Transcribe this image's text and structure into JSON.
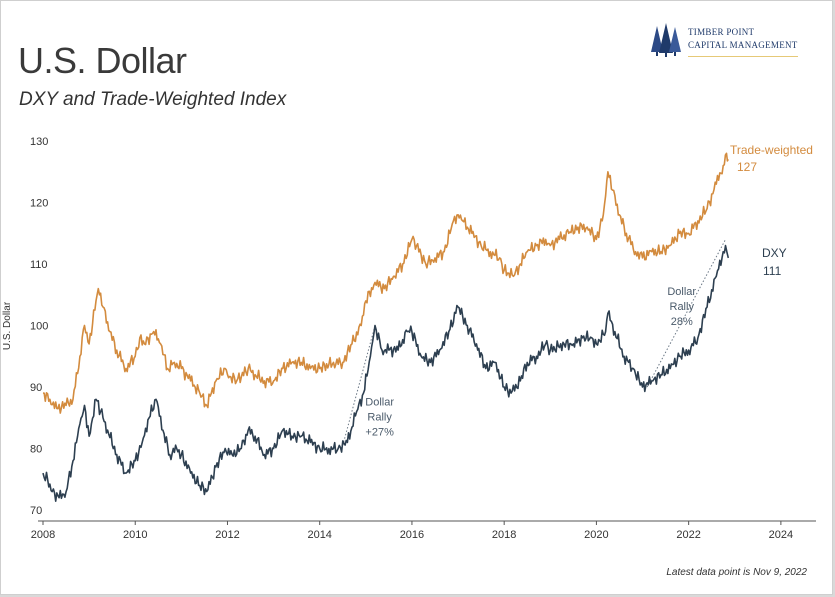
{
  "header": {
    "title": "U.S. Dollar",
    "subtitle": "DXY and Trade-Weighted Index"
  },
  "logo": {
    "line1": "Timber Point",
    "line2": "Capital Management",
    "icon": "pine-trees-icon"
  },
  "footnote": "Latest data point is Nov 9, 2022",
  "colors": {
    "trade_weighted": "#d38b3e",
    "dxy": "#2d3f50",
    "annotation": "#4a5a6a"
  },
  "chart_data": {
    "type": "line",
    "ylabel": "U.S. Dollar",
    "ylim": [
      70,
      130
    ],
    "yticks": [
      "70",
      "80",
      "90",
      "100",
      "110",
      "120",
      "130"
    ],
    "xlim": [
      2008,
      2025
    ],
    "xticks": [
      "2008",
      "2010",
      "2012",
      "2014",
      "2016",
      "2018",
      "2020",
      "2022",
      "2024"
    ],
    "grid": false,
    "series": [
      {
        "name": "Trade-weighted",
        "end_label": "127",
        "points": [
          [
            2008.0,
            89
          ],
          [
            2008.15,
            88
          ],
          [
            2008.3,
            86.5
          ],
          [
            2008.5,
            87
          ],
          [
            2008.65,
            88
          ],
          [
            2008.8,
            95
          ],
          [
            2008.9,
            100
          ],
          [
            2009.0,
            97
          ],
          [
            2009.15,
            104
          ],
          [
            2009.2,
            106
          ],
          [
            2009.3,
            103
          ],
          [
            2009.45,
            99
          ],
          [
            2009.6,
            96
          ],
          [
            2009.8,
            93
          ],
          [
            2010.0,
            95
          ],
          [
            2010.1,
            98
          ],
          [
            2010.2,
            97
          ],
          [
            2010.4,
            99
          ],
          [
            2010.55,
            97
          ],
          [
            2010.7,
            93
          ],
          [
            2010.85,
            94
          ],
          [
            2011.0,
            93
          ],
          [
            2011.2,
            91
          ],
          [
            2011.4,
            89
          ],
          [
            2011.55,
            87
          ],
          [
            2011.75,
            91
          ],
          [
            2011.95,
            93
          ],
          [
            2012.0,
            92
          ],
          [
            2012.2,
            91
          ],
          [
            2012.45,
            93
          ],
          [
            2012.6,
            92
          ],
          [
            2012.8,
            91
          ],
          [
            2013.0,
            91
          ],
          [
            2013.2,
            93
          ],
          [
            2013.4,
            94
          ],
          [
            2013.6,
            94
          ],
          [
            2013.8,
            93
          ],
          [
            2014.0,
            93
          ],
          [
            2014.3,
            94
          ],
          [
            2014.5,
            94
          ],
          [
            2014.7,
            97
          ],
          [
            2014.9,
            100
          ],
          [
            2015.0,
            104
          ],
          [
            2015.2,
            107
          ],
          [
            2015.4,
            106
          ],
          [
            2015.6,
            108
          ],
          [
            2015.8,
            110
          ],
          [
            2016.0,
            114
          ],
          [
            2016.1,
            113
          ],
          [
            2016.3,
            110
          ],
          [
            2016.5,
            111
          ],
          [
            2016.7,
            112
          ],
          [
            2016.9,
            117
          ],
          [
            2017.0,
            118
          ],
          [
            2017.1,
            117
          ],
          [
            2017.3,
            115
          ],
          [
            2017.5,
            113
          ],
          [
            2017.7,
            112
          ],
          [
            2017.9,
            111
          ],
          [
            2018.0,
            109
          ],
          [
            2018.2,
            108
          ],
          [
            2018.35,
            110
          ],
          [
            2018.5,
            112
          ],
          [
            2018.7,
            113
          ],
          [
            2018.9,
            114
          ],
          [
            2019.0,
            113
          ],
          [
            2019.2,
            114
          ],
          [
            2019.4,
            115
          ],
          [
            2019.6,
            116
          ],
          [
            2019.8,
            116
          ],
          [
            2020.0,
            114
          ],
          [
            2020.15,
            118
          ],
          [
            2020.25,
            125
          ],
          [
            2020.35,
            122
          ],
          [
            2020.5,
            118
          ],
          [
            2020.65,
            115
          ],
          [
            2020.85,
            112
          ],
          [
            2021.0,
            111
          ],
          [
            2021.2,
            112
          ],
          [
            2021.4,
            112
          ],
          [
            2021.6,
            113
          ],
          [
            2021.8,
            115
          ],
          [
            2022.0,
            115
          ],
          [
            2022.2,
            117
          ],
          [
            2022.4,
            119
          ],
          [
            2022.6,
            123
          ],
          [
            2022.75,
            126
          ],
          [
            2022.82,
            128
          ],
          [
            2022.86,
            127
          ]
        ]
      },
      {
        "name": "DXY",
        "end_label": "111",
        "points": [
          [
            2008.0,
            76
          ],
          [
            2008.1,
            75
          ],
          [
            2008.2,
            73
          ],
          [
            2008.35,
            72
          ],
          [
            2008.5,
            73
          ],
          [
            2008.65,
            78
          ],
          [
            2008.8,
            84
          ],
          [
            2008.9,
            87
          ],
          [
            2009.0,
            82
          ],
          [
            2009.15,
            88
          ],
          [
            2009.25,
            86
          ],
          [
            2009.4,
            83
          ],
          [
            2009.6,
            79
          ],
          [
            2009.8,
            76
          ],
          [
            2010.0,
            78
          ],
          [
            2010.15,
            81
          ],
          [
            2010.3,
            85
          ],
          [
            2010.45,
            88
          ],
          [
            2010.6,
            83
          ],
          [
            2010.75,
            79
          ],
          [
            2010.9,
            80
          ],
          [
            2011.0,
            79
          ],
          [
            2011.2,
            76
          ],
          [
            2011.4,
            74
          ],
          [
            2011.55,
            73
          ],
          [
            2011.75,
            77
          ],
          [
            2011.95,
            80
          ],
          [
            2012.1,
            79
          ],
          [
            2012.3,
            80
          ],
          [
            2012.45,
            83
          ],
          [
            2012.6,
            82
          ],
          [
            2012.8,
            79
          ],
          [
            2013.0,
            80
          ],
          [
            2013.2,
            83
          ],
          [
            2013.4,
            82
          ],
          [
            2013.6,
            82
          ],
          [
            2013.8,
            81
          ],
          [
            2014.0,
            80
          ],
          [
            2014.2,
            80
          ],
          [
            2014.4,
            80
          ],
          [
            2014.6,
            81
          ],
          [
            2014.8,
            86
          ],
          [
            2014.95,
            89
          ],
          [
            2015.1,
            95
          ],
          [
            2015.2,
            100
          ],
          [
            2015.35,
            96
          ],
          [
            2015.5,
            96
          ],
          [
            2015.7,
            96
          ],
          [
            2015.9,
            99
          ],
          [
            2016.0,
            99
          ],
          [
            2016.2,
            95
          ],
          [
            2016.4,
            94
          ],
          [
            2016.6,
            96
          ],
          [
            2016.8,
            99
          ],
          [
            2016.95,
            102
          ],
          [
            2017.0,
            103
          ],
          [
            2017.2,
            100
          ],
          [
            2017.4,
            97
          ],
          [
            2017.6,
            93
          ],
          [
            2017.8,
            94
          ],
          [
            2018.0,
            90
          ],
          [
            2018.15,
            89
          ],
          [
            2018.35,
            91
          ],
          [
            2018.5,
            94
          ],
          [
            2018.7,
            95
          ],
          [
            2018.9,
            97
          ],
          [
            2019.0,
            96
          ],
          [
            2019.3,
            97
          ],
          [
            2019.5,
            97
          ],
          [
            2019.7,
            98
          ],
          [
            2019.9,
            98
          ],
          [
            2020.0,
            97
          ],
          [
            2020.2,
            99
          ],
          [
            2020.25,
            102
          ],
          [
            2020.4,
            99
          ],
          [
            2020.6,
            95
          ],
          [
            2020.8,
            93
          ],
          [
            2021.0,
            90
          ],
          [
            2021.2,
            91
          ],
          [
            2021.4,
            92
          ],
          [
            2021.6,
            93
          ],
          [
            2021.8,
            95
          ],
          [
            2022.0,
            96
          ],
          [
            2022.2,
            98
          ],
          [
            2022.4,
            103
          ],
          [
            2022.6,
            108
          ],
          [
            2022.75,
            112
          ],
          [
            2022.8,
            113
          ],
          [
            2022.86,
            111
          ]
        ]
      }
    ],
    "annotations": [
      {
        "lines": [
          "Dollar",
          "Rally",
          "+27%"
        ],
        "x": 2015.3,
        "y": 87
      },
      {
        "lines": [
          "Dollar",
          "Rally",
          "28%"
        ],
        "x": 2021.85,
        "y": 105
      }
    ],
    "rally_lines": [
      {
        "from": [
          2014.5,
          80.5
        ],
        "to": [
          2015.2,
          100
        ]
      },
      {
        "from": [
          2021.1,
          90
        ],
        "to": [
          2022.8,
          114
        ]
      }
    ]
  }
}
